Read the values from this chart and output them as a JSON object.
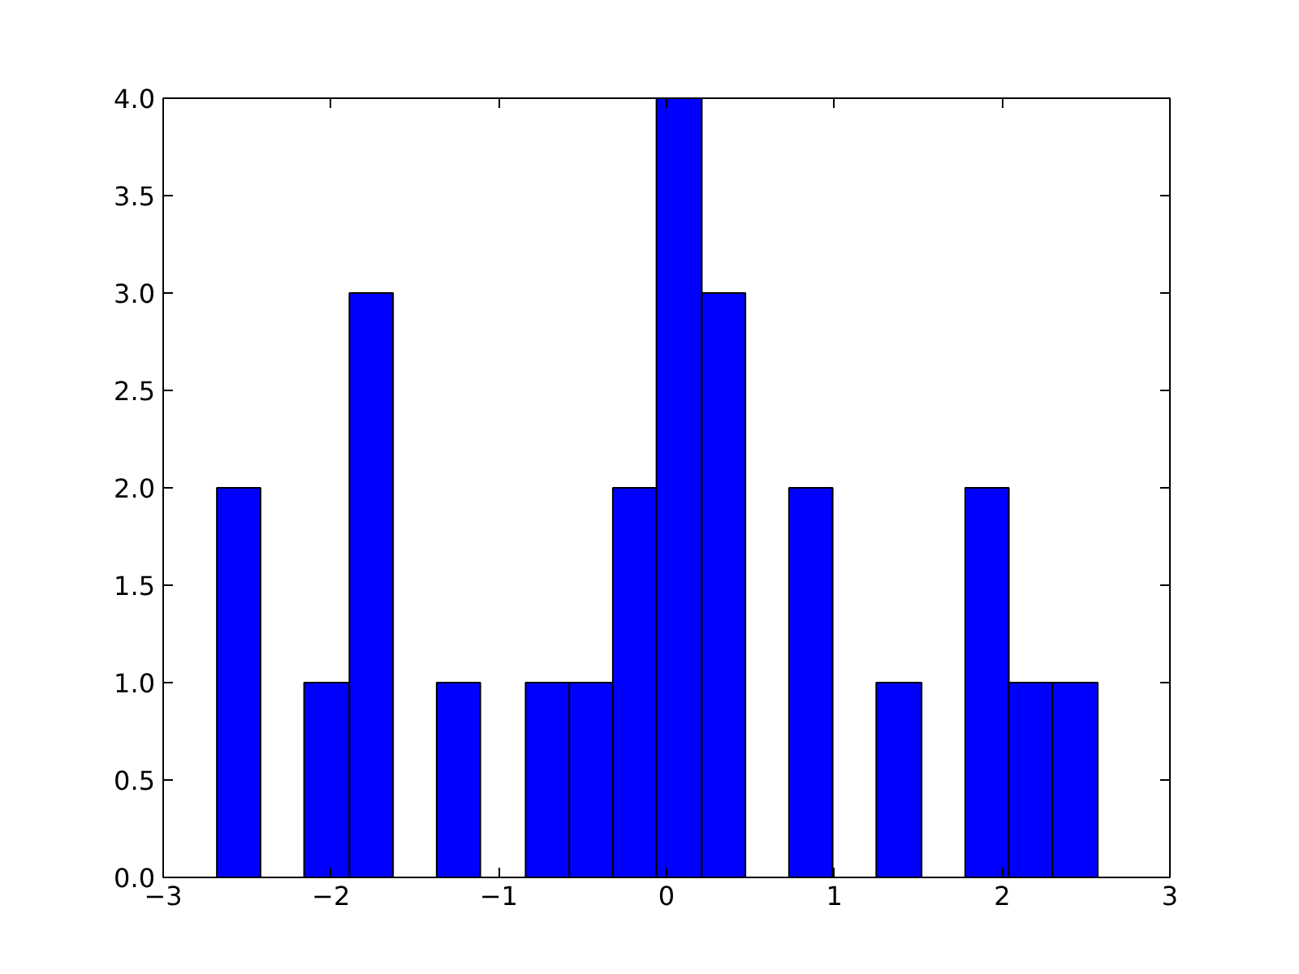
{
  "chart_data": {
    "type": "histogram",
    "color": "#0000ff",
    "bins": [
      -2.68,
      -2.42,
      -2.16,
      -1.89,
      -1.63,
      -1.37,
      -1.11,
      -0.84,
      -0.58,
      -0.32,
      -0.06,
      0.21,
      0.47,
      0.73,
      0.99,
      1.25,
      1.52,
      1.78,
      2.04,
      2.3,
      2.57
    ],
    "values": [
      2,
      0,
      1,
      3,
      0,
      1,
      0,
      1,
      1,
      2,
      4,
      3,
      0,
      2,
      0,
      1,
      0,
      2,
      1,
      1
    ],
    "xlim": [
      -3,
      3
    ],
    "xticks": [
      {
        "value": -3,
        "label": "−3"
      },
      {
        "value": -2,
        "label": "−2"
      },
      {
        "value": -1,
        "label": "−1"
      },
      0,
      1,
      2,
      3
    ],
    "ylim": [
      0,
      4
    ],
    "yticks": [
      {
        "value": 0,
        "label": "0.0"
      },
      {
        "value": 0.5,
        "label": "0.5"
      },
      {
        "value": 1,
        "label": "1.0"
      },
      {
        "value": 1.5,
        "label": "1.5"
      },
      {
        "value": 2,
        "label": "2.0"
      },
      {
        "value": 2.5,
        "label": "2.5"
      },
      {
        "value": 3,
        "label": "3.0"
      },
      {
        "value": 3.5,
        "label": "3.5"
      },
      {
        "value": 4,
        "label": "4.0"
      }
    ],
    "grid": false
  }
}
